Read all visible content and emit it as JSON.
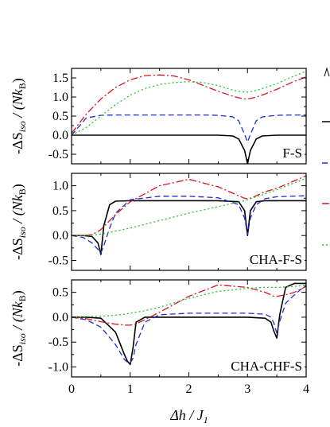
{
  "colors": {
    "black": "#000000",
    "blue": "#1f2bd6",
    "red": "#d8141e",
    "green": "#1ec81e"
  },
  "shared": {
    "xlabel": "Δh / J",
    "xlabel_sub": "1",
    "ylabel_prefix": "-ΔS",
    "ylabel_sub": "iso",
    "ylabel_mid": " / (Nk",
    "ylabel_sub2": "B",
    "ylabel_suffix": ")",
    "xlim": [
      0,
      4
    ],
    "xticks": [
      "0",
      "1",
      "2",
      "3",
      "4"
    ]
  },
  "chart_data": [
    {
      "type": "line",
      "label": "F-S",
      "ylim": [
        -0.75,
        1.75
      ],
      "yticks": [
        "-0.5",
        "0.0",
        "0.5",
        "1.0",
        "1.5"
      ],
      "ytick_values": [
        -0.5,
        0.0,
        0.5,
        1.0,
        1.5
      ],
      "x": [
        0,
        0.25,
        0.5,
        0.75,
        1,
        1.25,
        1.5,
        1.75,
        2,
        2.25,
        2.5,
        2.75,
        2.85,
        2.95,
        3,
        3.05,
        3.15,
        3.25,
        3.5,
        3.75,
        4
      ],
      "series": [
        {
          "color": "black",
          "style": "solid",
          "values": [
            0.0,
            0.0,
            0.0,
            0.0,
            0.0,
            0.0,
            0.0,
            0.0,
            0.0,
            0.0,
            0.0,
            -0.02,
            -0.1,
            -0.4,
            -0.75,
            -0.4,
            -0.1,
            -0.02,
            0.0,
            0.0,
            0.0
          ]
        },
        {
          "color": "blue",
          "style": "dash",
          "values": [
            0.0,
            0.45,
            0.52,
            0.53,
            0.53,
            0.53,
            0.53,
            0.53,
            0.53,
            0.53,
            0.52,
            0.48,
            0.38,
            0.02,
            -0.18,
            0.02,
            0.38,
            0.48,
            0.52,
            0.53,
            0.53
          ]
        },
        {
          "color": "red",
          "style": "dashdot",
          "values": [
            0.05,
            0.55,
            0.95,
            1.25,
            1.45,
            1.56,
            1.58,
            1.55,
            1.45,
            1.3,
            1.15,
            1.02,
            0.98,
            0.95,
            0.95,
            0.96,
            1.0,
            1.05,
            1.2,
            1.38,
            1.53
          ]
        },
        {
          "color": "green",
          "style": "dot",
          "values": [
            0.0,
            0.2,
            0.5,
            0.8,
            1.05,
            1.22,
            1.33,
            1.38,
            1.4,
            1.38,
            1.3,
            1.18,
            1.15,
            1.13,
            1.13,
            1.14,
            1.17,
            1.22,
            1.35,
            1.52,
            1.68
          ]
        }
      ]
    },
    {
      "type": "line",
      "label": "CHA-F-S",
      "ylim": [
        -0.7,
        1.25
      ],
      "yticks": [
        "-0.5",
        "0.0",
        "0.5",
        "1.0"
      ],
      "ytick_values": [
        -0.5,
        0.0,
        0.5,
        1.0
      ],
      "x": [
        0,
        0.2,
        0.35,
        0.45,
        0.5,
        0.55,
        0.65,
        0.75,
        1,
        1.5,
        2,
        2.5,
        2.85,
        2.95,
        3,
        3.05,
        3.15,
        3.3,
        3.5,
        4
      ],
      "series": [
        {
          "color": "black",
          "style": "solid",
          "values": [
            0.0,
            0.0,
            -0.02,
            -0.15,
            -0.38,
            0.2,
            0.62,
            0.69,
            0.7,
            0.7,
            0.7,
            0.7,
            0.68,
            0.5,
            0.0,
            0.5,
            0.68,
            0.7,
            0.7,
            0.7
          ]
        },
        {
          "color": "blue",
          "style": "dash",
          "values": [
            0.0,
            -0.04,
            -0.15,
            -0.28,
            -0.35,
            -0.2,
            0.15,
            0.45,
            0.72,
            0.79,
            0.79,
            0.76,
            0.62,
            0.35,
            0.02,
            0.35,
            0.62,
            0.74,
            0.78,
            0.8
          ]
        },
        {
          "color": "red",
          "style": "dashdot",
          "values": [
            0.0,
            0.0,
            0.02,
            0.08,
            0.12,
            0.18,
            0.3,
            0.42,
            0.68,
            1.0,
            1.13,
            0.98,
            0.8,
            0.75,
            0.74,
            0.75,
            0.8,
            0.88,
            0.95,
            1.2
          ]
        },
        {
          "color": "green",
          "style": "dot",
          "values": [
            0.0,
            0.0,
            0.01,
            0.02,
            0.03,
            0.04,
            0.06,
            0.09,
            0.15,
            0.3,
            0.45,
            0.58,
            0.68,
            0.7,
            0.72,
            0.74,
            0.78,
            0.84,
            0.92,
            1.15
          ]
        }
      ]
    },
    {
      "type": "line",
      "label": "CHA-CHF-S",
      "ylim": [
        -1.2,
        0.75
      ],
      "yticks": [
        "-1.0",
        "-0.5",
        "0.0",
        "0.5"
      ],
      "ytick_values": [
        -1.0,
        -0.5,
        0.0,
        0.5
      ],
      "x": [
        0,
        0.25,
        0.5,
        0.75,
        0.9,
        0.95,
        1,
        1.05,
        1.1,
        1.25,
        1.5,
        2,
        2.5,
        3,
        3.3,
        3.4,
        3.45,
        3.5,
        3.55,
        3.65,
        3.8,
        4
      ],
      "series": [
        {
          "color": "black",
          "style": "solid",
          "values": [
            0.0,
            0.0,
            -0.02,
            -0.3,
            -0.75,
            -0.88,
            -0.95,
            -0.6,
            -0.1,
            0.0,
            0.0,
            0.0,
            0.0,
            0.0,
            -0.02,
            -0.1,
            -0.28,
            -0.42,
            0.05,
            0.6,
            0.68,
            0.68
          ]
        },
        {
          "color": "blue",
          "style": "dash",
          "values": [
            0.0,
            -0.05,
            -0.2,
            -0.55,
            -0.85,
            -0.9,
            -0.92,
            -0.82,
            -0.55,
            -0.1,
            0.05,
            0.08,
            0.08,
            0.08,
            0.06,
            0.0,
            -0.12,
            -0.32,
            -0.08,
            0.28,
            0.45,
            0.65
          ]
        },
        {
          "color": "red",
          "style": "dashdot",
          "values": [
            0.0,
            -0.03,
            -0.09,
            -0.14,
            -0.16,
            -0.16,
            -0.16,
            -0.15,
            -0.13,
            -0.05,
            0.1,
            0.42,
            0.65,
            0.6,
            0.5,
            0.45,
            0.42,
            0.42,
            0.43,
            0.45,
            0.5,
            0.62
          ]
        },
        {
          "color": "green",
          "style": "dot",
          "values": [
            0.0,
            0.01,
            0.02,
            0.04,
            0.06,
            0.07,
            0.08,
            0.09,
            0.1,
            0.13,
            0.2,
            0.38,
            0.52,
            0.58,
            0.6,
            0.6,
            0.6,
            0.6,
            0.6,
            0.61,
            0.62,
            0.64
          ]
        }
      ]
    }
  ]
}
